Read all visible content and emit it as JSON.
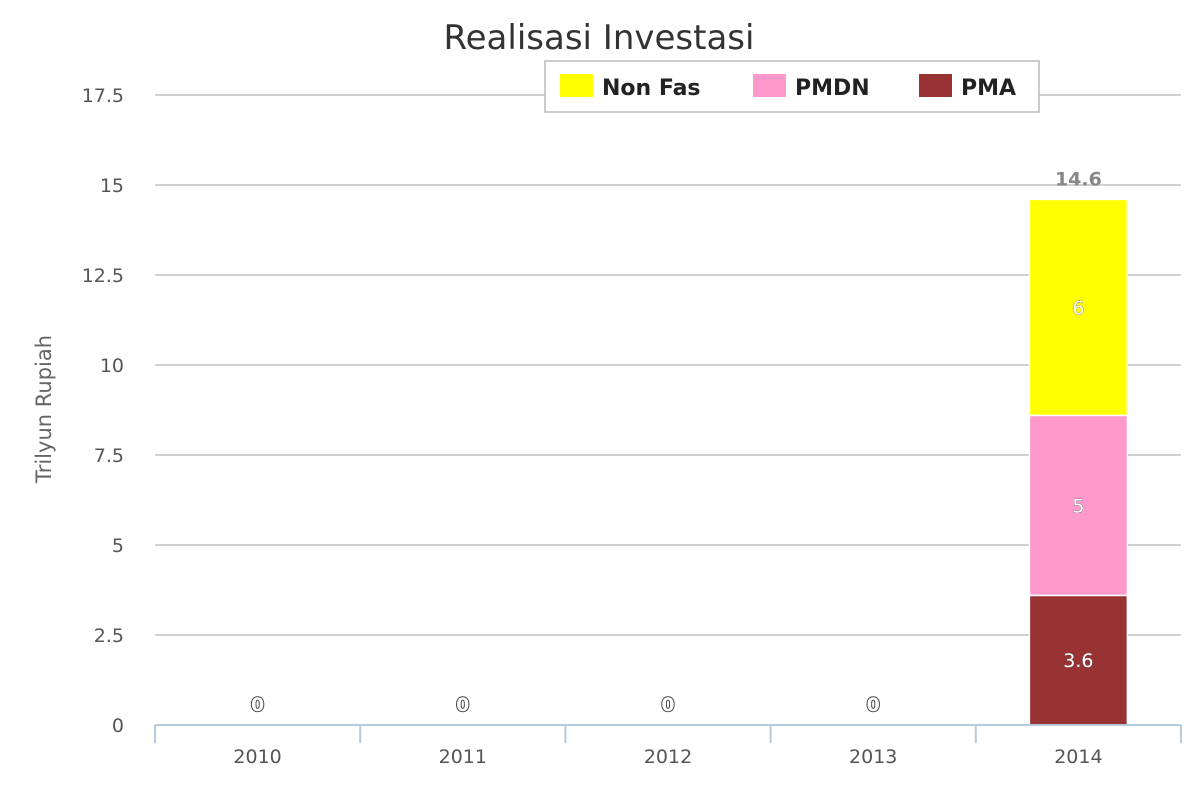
{
  "chart_data": {
    "type": "bar",
    "stacked": true,
    "title": "Realisasi Investasi",
    "ylabel": "Trilyun Rupiah",
    "xlabel": "",
    "categories": [
      "2010",
      "2011",
      "2012",
      "2013",
      "2014"
    ],
    "ylim": [
      0,
      17.5
    ],
    "yticks": [
      "0",
      "2.5",
      "5",
      "7.5",
      "10",
      "12.5",
      "15",
      "17.5"
    ],
    "series": [
      {
        "name": "PMA",
        "values": [
          0,
          0,
          0,
          0,
          3.6
        ],
        "color": "#993333"
      },
      {
        "name": "PMDN",
        "values": [
          0,
          0,
          0,
          0,
          5
        ],
        "color": "#ff99cc"
      },
      {
        "name": "Non Fas",
        "values": [
          0,
          0,
          0,
          0,
          6
        ],
        "color": "#ffff00"
      }
    ],
    "totals": [
      "0",
      "0",
      "0",
      "0",
      "14.6"
    ],
    "segment_labels": [
      "3.6",
      "5",
      "6"
    ],
    "legend": {
      "position": "top-center",
      "items": [
        {
          "name": "Non Fas",
          "color": "#ffff00"
        },
        {
          "name": "PMDN",
          "color": "#ff99cc"
        },
        {
          "name": "PMA",
          "color": "#993333"
        }
      ]
    },
    "grid": true
  }
}
